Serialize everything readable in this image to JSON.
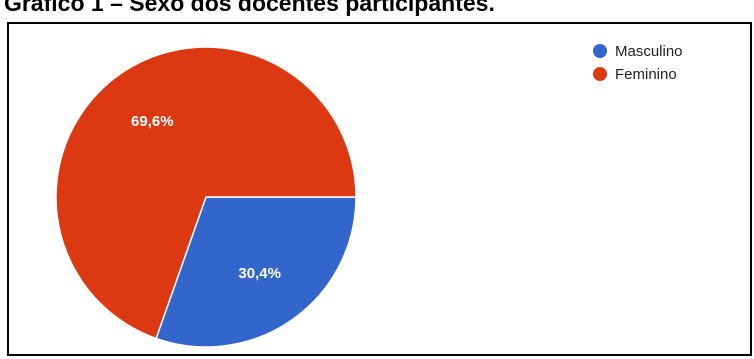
{
  "chart_data": {
    "type": "pie",
    "title": "Gráfico 1 – Sexo dos docentes participantes.",
    "slices": [
      {
        "label": "Masculino",
        "value": 30.4,
        "display": "30,4%",
        "color": "#3366cc"
      },
      {
        "label": "Feminino",
        "value": 69.6,
        "display": "69,6%",
        "color": "#dc3912"
      }
    ],
    "start_angle_deg": 90,
    "direction": "clockwise",
    "legend_position": "top-right"
  }
}
